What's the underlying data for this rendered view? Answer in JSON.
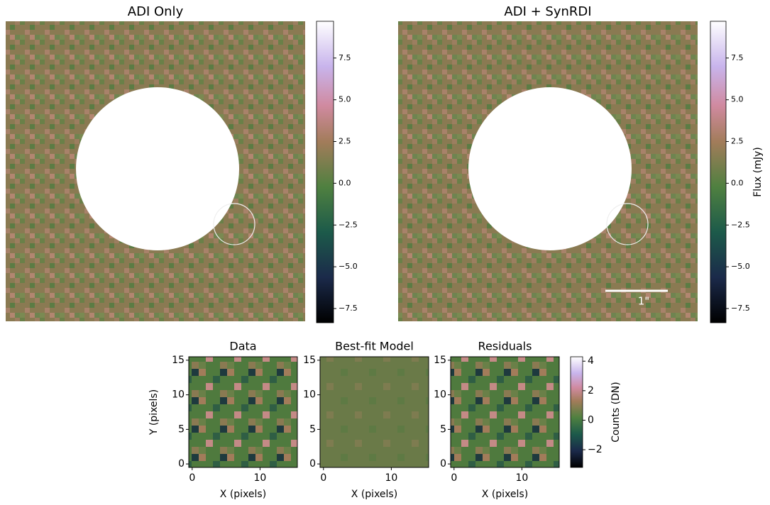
{
  "chart_data": [
    {
      "type": "image",
      "title": "ADI Only",
      "colorbar": {
        "lim": [
          -8.35,
          9.7
        ],
        "ticks": [
          {
            "value": -7.5,
            "label": "−7.5"
          },
          {
            "value": -5,
            "label": "−5.0"
          },
          {
            "value": -2.5,
            "label": "−2.5"
          },
          {
            "value": 0,
            "label": "0.0"
          },
          2.5,
          {
            "value": 5,
            "label": "5.0"
          },
          7.5
        ]
      }
    },
    {
      "type": "image",
      "title": "ADI + SynRDI",
      "scalebar_label": "1\"",
      "colorbar": {
        "label": "Flux (mJy)",
        "lim": [
          -8.35,
          9.7
        ],
        "ticks": [
          {
            "value": -7.5,
            "label": "−7.5"
          },
          {
            "value": -5,
            "label": "−5.0"
          },
          {
            "value": -2.5,
            "label": "−2.5"
          },
          {
            "value": 0,
            "label": "0.0"
          },
          2.5,
          {
            "value": 5,
            "label": "5.0"
          },
          7.5
        ]
      }
    },
    {
      "type": "image",
      "title": "Data",
      "xlabel": "X (pixels)",
      "ylabel": "Y (pixels)",
      "xlim": [
        -0.5,
        15.5
      ],
      "ylim": [
        -0.5,
        15.5
      ],
      "xticks": [
        0,
        10
      ],
      "yticks": [
        0,
        5,
        10,
        15
      ]
    },
    {
      "type": "image",
      "title": "Best-fit Model",
      "xlabel": "X (pixels)",
      "xlim": [
        -0.5,
        15.5
      ],
      "ylim": [
        -0.5,
        15.5
      ],
      "xticks": [
        0,
        10
      ],
      "yticks": [
        0,
        5,
        10,
        15
      ]
    },
    {
      "type": "image",
      "title": "Residuals",
      "xlabel": "X (pixels)",
      "xlim": [
        -0.5,
        15.5
      ],
      "ylim": [
        -0.5,
        15.5
      ],
      "xticks": [
        0,
        10
      ],
      "yticks": [
        0,
        5,
        10,
        15
      ],
      "colorbar": {
        "label": "Counts (DN)",
        "lim": [
          -3.2,
          4.3
        ],
        "ticks": [
          {
            "value": -2,
            "label": "−2"
          },
          0,
          2,
          4
        ]
      }
    }
  ]
}
